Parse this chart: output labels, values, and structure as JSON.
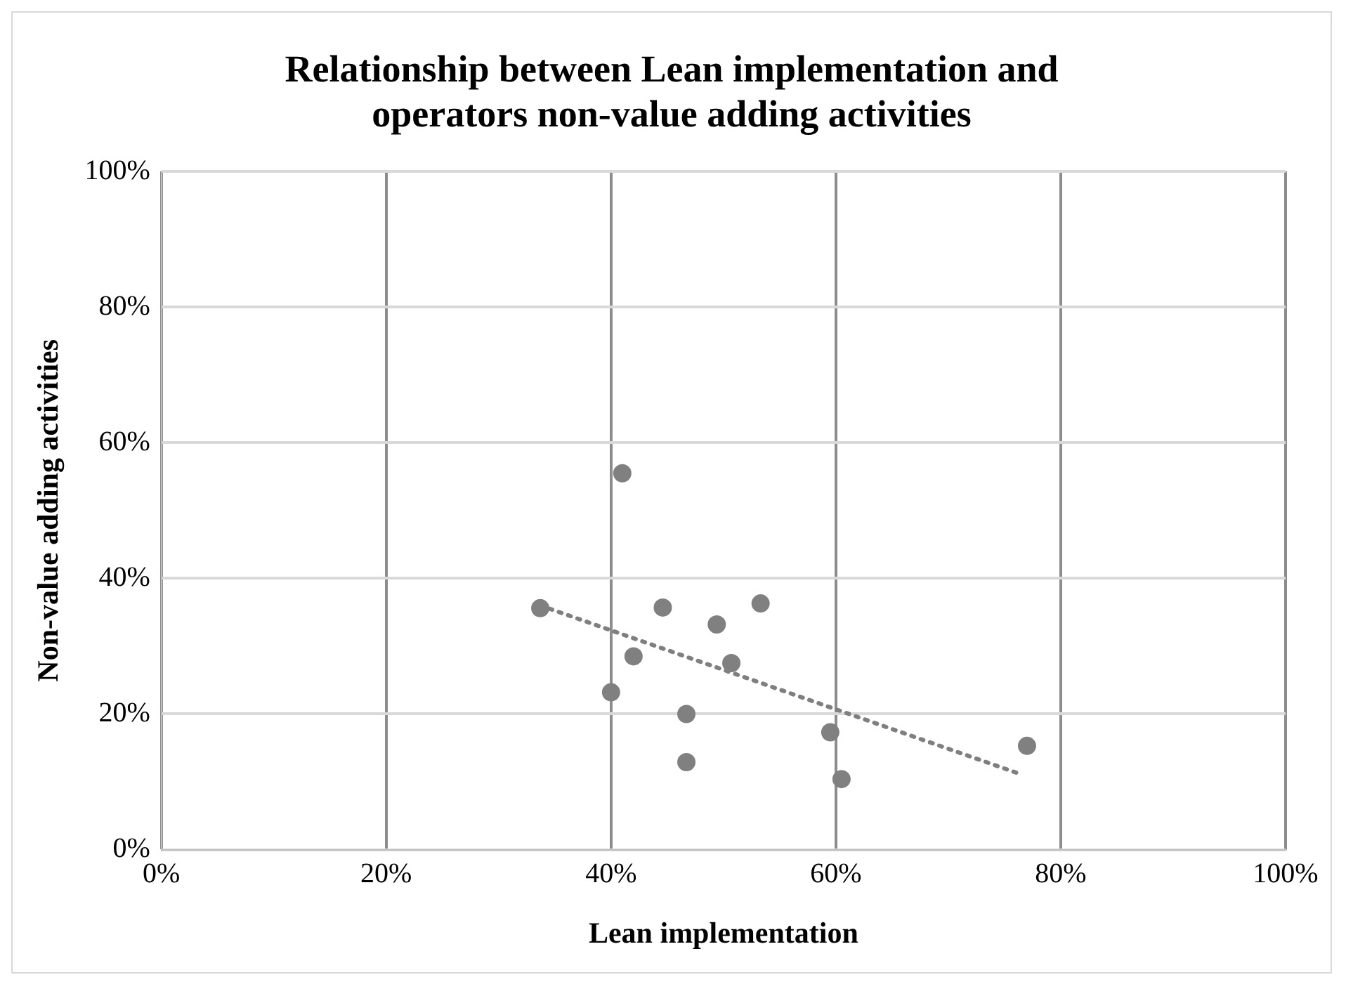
{
  "chart_data": {
    "type": "scatter",
    "title": "Relationship between Lean implementation and operators non-value adding activities",
    "xlabel": "Lean implementation",
    "ylabel": "Non-value adding activities",
    "xlim": [
      0,
      100
    ],
    "ylim": [
      0,
      100
    ],
    "xticks": [
      {
        "value": 0,
        "label": "0%"
      },
      {
        "value": 20,
        "label": "20%"
      },
      {
        "value": 40,
        "label": "40%"
      },
      {
        "value": 60,
        "label": "60%"
      },
      {
        "value": 80,
        "label": "80%"
      },
      {
        "value": 100,
        "label": "100%"
      }
    ],
    "yticks": [
      {
        "value": 0,
        "label": "0%"
      },
      {
        "value": 20,
        "label": "20%"
      },
      {
        "value": 40,
        "label": "40%"
      },
      {
        "value": 60,
        "label": "60%"
      },
      {
        "value": 80,
        "label": "80%"
      },
      {
        "value": 100,
        "label": "100%"
      }
    ],
    "grid": true,
    "legend": false,
    "marker": "circle",
    "series": [
      {
        "type": "scatter",
        "color": "#808080",
        "x": [
          33.7,
          41.0,
          44.6,
          53.3,
          49.4,
          42.0,
          50.7,
          40.0,
          46.7,
          46.7,
          59.5,
          60.5,
          77.0
        ],
        "values": [
          35.6,
          55.5,
          35.7,
          36.3,
          33.2,
          28.5,
          27.5,
          23.2,
          20.0,
          12.9,
          17.3,
          10.4,
          15.3
        ]
      },
      {
        "type": "line",
        "color": "#7f7f7f",
        "line_style": "dotted",
        "marker": "none",
        "x": [
          33.7,
          76.3
        ],
        "values": [
          36.0,
          11.2
        ]
      }
    ]
  }
}
